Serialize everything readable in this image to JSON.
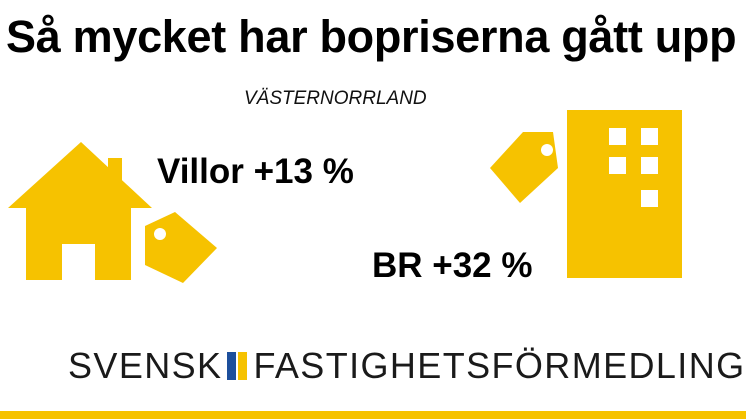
{
  "title": "Så mycket har bopriserna gått upp",
  "region": "VÄSTERNORRLAND",
  "stats": {
    "villor": "Villor +13 %",
    "br": "BR +32 %"
  },
  "brand": {
    "left": "SVENSK",
    "right": "FASTIGHETSFÖRMEDLING"
  },
  "colors": {
    "accent": "#f6c200",
    "flag_blue": "#1d4f9c",
    "text": "#000000"
  },
  "icons": [
    "house-icon",
    "price-tag-icon",
    "apartment-building-icon",
    "swedish-flag-icon"
  ]
}
